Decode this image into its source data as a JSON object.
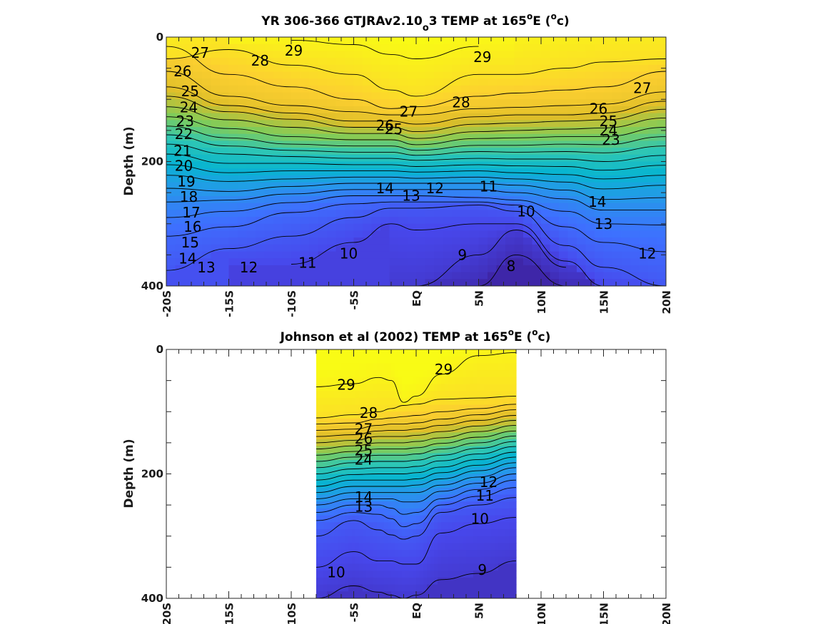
{
  "chart_data": [
    {
      "type": "heatmap",
      "title": {
        "pre": "YR 306-366 GTJRAv2.10",
        "sub": "o",
        "mid": "3 TEMP at 165",
        "sup1": "o",
        "post1": "E (",
        "sup2": "o",
        "post2": "c)"
      },
      "ylabel": "Depth (m)",
      "x_ticklabels": [
        "-20S",
        "-15S",
        "-10S",
        "-5S",
        "EQ",
        "5N",
        "10N",
        "15N",
        "20N"
      ],
      "x_ticks": [
        -20,
        -15,
        -10,
        -5,
        0,
        5,
        10,
        15,
        20
      ],
      "xlim": [
        -20,
        20
      ],
      "y_ticklabels": [
        "0",
        "200",
        "400"
      ],
      "y_ticks": [
        0,
        200,
        400
      ],
      "ylim": [
        0,
        400
      ],
      "colormap": "parula",
      "color_range": [
        7.5,
        29.5
      ],
      "data_lat_range": [
        -20,
        20
      ],
      "contour_levels": [
        8,
        9,
        10,
        11,
        12,
        13,
        14,
        15,
        16,
        17,
        18,
        19,
        20,
        21,
        22,
        23,
        24,
        25,
        26,
        27,
        28,
        29
      ],
      "isotherm_depths": {
        "lat": [
          -20,
          -15,
          -10,
          -5,
          -2,
          0,
          5,
          8,
          12,
          15,
          20
        ],
        "29": [
          null,
          null,
          5,
          12,
          28,
          35,
          15,
          null,
          null,
          null,
          null
        ],
        "28": [
          35,
          20,
          45,
          60,
          85,
          95,
          60,
          60,
          50,
          40,
          35
        ],
        "27": [
          15,
          60,
          80,
          100,
          115,
          112,
          95,
          90,
          85,
          80,
          55
        ],
        "26": [
          55,
          95,
          110,
          120,
          125,
          125,
          115,
          113,
          110,
          108,
          88
        ],
        "25": [
          80,
          110,
          122,
          135,
          135,
          140,
          128,
          125,
          125,
          122,
          103
        ],
        "24": [
          95,
          120,
          132,
          145,
          145,
          152,
          140,
          138,
          135,
          133,
          116
        ],
        "23": [
          112,
          133,
          145,
          155,
          155,
          163,
          152,
          150,
          148,
          146,
          130
        ],
        "22": [
          128,
          147,
          160,
          165,
          165,
          173,
          163,
          162,
          160,
          160,
          145
        ],
        "21": [
          143,
          162,
          172,
          175,
          175,
          182,
          174,
          174,
          172,
          173,
          160
        ],
        "20": [
          157,
          175,
          182,
          185,
          185,
          190,
          184,
          185,
          184,
          186,
          175
        ],
        "19": [
          172,
          188,
          192,
          195,
          195,
          198,
          195,
          196,
          196,
          200,
          190
        ],
        "18": [
          188,
          203,
          203,
          205,
          205,
          208,
          205,
          207,
          208,
          214,
          206
        ],
        "17": [
          205,
          218,
          215,
          215,
          215,
          217,
          215,
          218,
          221,
          228,
          222
        ],
        "16": [
          222,
          232,
          228,
          225,
          225,
          227,
          225,
          228,
          233,
          244,
          238
        ],
        "15": [
          243,
          248,
          240,
          235,
          235,
          235,
          235,
          238,
          246,
          261,
          258
        ],
        "14": [
          265,
          262,
          252,
          245,
          245,
          245,
          245,
          250,
          260,
          278,
          278
        ],
        "13": [
          290,
          280,
          266,
          255,
          255,
          255,
          258,
          262,
          280,
          300,
          302
        ],
        "12": [
          320,
          305,
          282,
          268,
          265,
          265,
          265,
          270,
          305,
          330,
          345
        ],
        "11": [
          375,
          340,
          320,
          290,
          275,
          275,
          270,
          280,
          335,
          370,
          400
        ],
        "10": [
          null,
          null,
          365,
          330,
          300,
          310,
          300,
          300,
          360,
          400,
          null
        ],
        "9": [
          null,
          null,
          null,
          null,
          null,
          400,
          350,
          310,
          370,
          null,
          null
        ],
        "8": [
          null,
          null,
          null,
          null,
          null,
          null,
          400,
          350,
          400,
          null,
          null
        ]
      },
      "contour_labels": [
        {
          "v": "26",
          "lat": -18.7,
          "d": 55
        },
        {
          "v": "27",
          "lat": -17.3,
          "d": 25
        },
        {
          "v": "28",
          "lat": -12.5,
          "d": 38
        },
        {
          "v": "29",
          "lat": -9.8,
          "d": 22
        },
        {
          "v": "29",
          "lat": 5.3,
          "d": 32
        },
        {
          "v": "28",
          "lat": 3.6,
          "d": 105
        },
        {
          "v": "27",
          "lat": 18.1,
          "d": 82
        },
        {
          "v": "26",
          "lat": 14.6,
          "d": 115
        },
        {
          "v": "25",
          "lat": -18.1,
          "d": 87
        },
        {
          "v": "24",
          "lat": -18.2,
          "d": 113
        },
        {
          "v": "23",
          "lat": -18.5,
          "d": 135
        },
        {
          "v": "22",
          "lat": -18.6,
          "d": 156
        },
        {
          "v": "21",
          "lat": -18.7,
          "d": 183
        },
        {
          "v": "20",
          "lat": -18.6,
          "d": 207
        },
        {
          "v": "19",
          "lat": -18.4,
          "d": 232
        },
        {
          "v": "18",
          "lat": -18.2,
          "d": 257
        },
        {
          "v": "17",
          "lat": -18.0,
          "d": 282
        },
        {
          "v": "16",
          "lat": -17.9,
          "d": 305
        },
        {
          "v": "15",
          "lat": -18.1,
          "d": 330
        },
        {
          "v": "14",
          "lat": -18.3,
          "d": 356
        },
        {
          "v": "13",
          "lat": -16.8,
          "d": 370
        },
        {
          "v": "12",
          "lat": -13.4,
          "d": 370
        },
        {
          "v": "11",
          "lat": -8.7,
          "d": 363
        },
        {
          "v": "10",
          "lat": -5.4,
          "d": 348
        },
        {
          "v": "9",
          "lat": 3.7,
          "d": 350
        },
        {
          "v": "8",
          "lat": 7.6,
          "d": 368
        },
        {
          "v": "27",
          "lat": -0.6,
          "d": 120
        },
        {
          "v": "26",
          "lat": -2.5,
          "d": 142
        },
        {
          "v": "25",
          "lat": -1.8,
          "d": 148
        },
        {
          "v": "14",
          "lat": -2.5,
          "d": 243
        },
        {
          "v": "13",
          "lat": -0.4,
          "d": 255
        },
        {
          "v": "12",
          "lat": 1.5,
          "d": 243
        },
        {
          "v": "11",
          "lat": 5.8,
          "d": 240
        },
        {
          "v": "10",
          "lat": 8.8,
          "d": 280
        },
        {
          "v": "25",
          "lat": 15.4,
          "d": 135
        },
        {
          "v": "24",
          "lat": 15.4,
          "d": 150
        },
        {
          "v": "23",
          "lat": 15.6,
          "d": 165
        },
        {
          "v": "13",
          "lat": 15.0,
          "d": 300
        },
        {
          "v": "14",
          "lat": 14.5,
          "d": 265
        },
        {
          "v": "12",
          "lat": 18.5,
          "d": 348
        }
      ]
    },
    {
      "type": "heatmap",
      "title": {
        "pre": "Johnson et al (2002) TEMP at 165",
        "sup1": "o",
        "post1": "E (",
        "sup2": "o",
        "post2": "c)"
      },
      "ylabel": "Depth (m)",
      "x_ticklabels": [
        "-20S",
        "-15S",
        "-10S",
        "-5S",
        "EQ",
        "5N",
        "10N",
        "15N",
        "20N"
      ],
      "x_ticks": [
        -20,
        -15,
        -10,
        -5,
        0,
        5,
        10,
        15,
        20
      ],
      "xlim": [
        -20,
        20
      ],
      "y_ticklabels": [
        "0",
        "200",
        "400"
      ],
      "y_ticks": [
        0,
        200,
        400
      ],
      "ylim": [
        0,
        400
      ],
      "colormap": "parula",
      "color_range": [
        7.5,
        29.5
      ],
      "data_lat_range": [
        -8,
        8
      ],
      "contour_levels": [
        9,
        10,
        11,
        12,
        13,
        14,
        15,
        16,
        17,
        18,
        19,
        20,
        21,
        22,
        23,
        24,
        25,
        26,
        27,
        28,
        29
      ],
      "isotherm_depths": {
        "lat": [
          -8,
          -5,
          -3,
          -2,
          -1,
          0,
          2,
          5,
          8
        ],
        "29": [
          60,
          55,
          45,
          50,
          85,
          75,
          40,
          10,
          5
        ],
        "28": [
          110,
          105,
          100,
          95,
          90,
          88,
          80,
          78,
          75
        ],
        "27": [
          120,
          118,
          112,
          110,
          108,
          106,
          100,
          95,
          88
        ],
        "26": [
          130,
          128,
          122,
          120,
          120,
          118,
          112,
          105,
          97
        ],
        "25": [
          140,
          137,
          131,
          130,
          130,
          128,
          122,
          114,
          106
        ],
        "24": [
          150,
          146,
          140,
          140,
          140,
          138,
          132,
          123,
          114
        ],
        "23": [
          160,
          155,
          150,
          150,
          150,
          148,
          142,
          132,
          122
        ],
        "22": [
          170,
          164,
          160,
          160,
          160,
          158,
          151,
          141,
          131
        ],
        "21": [
          180,
          173,
          170,
          170,
          170,
          168,
          160,
          150,
          139
        ],
        "20": [
          190,
          182,
          180,
          180,
          180,
          178,
          170,
          159,
          148
        ],
        "19": [
          200,
          192,
          190,
          190,
          190,
          188,
          179,
          168,
          156
        ],
        "18": [
          210,
          201,
          200,
          200,
          200,
          198,
          189,
          177,
          165
        ],
        "17": [
          220,
          210,
          210,
          210,
          210,
          208,
          198,
          186,
          173
        ],
        "16": [
          230,
          220,
          220,
          220,
          220,
          218,
          208,
          195,
          182
        ],
        "15": [
          240,
          230,
          230,
          230,
          230,
          230,
          218,
          205,
          190
        ],
        "14": [
          250,
          240,
          240,
          240,
          245,
          245,
          228,
          215,
          200
        ],
        "13": [
          262,
          250,
          250,
          255,
          265,
          262,
          240,
          225,
          210
        ],
        "12": [
          275,
          262,
          265,
          272,
          285,
          280,
          250,
          236,
          222
        ],
        "11": [
          300,
          275,
          290,
          298,
          305,
          300,
          262,
          250,
          238
        ],
        "10": [
          350,
          325,
          340,
          340,
          345,
          345,
          295,
          280,
          270
        ],
        "9": [
          400,
          380,
          390,
          395,
          400,
          395,
          370,
          360,
          340
        ]
      },
      "contour_labels": [
        {
          "v": "29",
          "lat": -5.6,
          "d": 57
        },
        {
          "v": "29",
          "lat": 2.2,
          "d": 32
        },
        {
          "v": "28",
          "lat": -3.8,
          "d": 102
        },
        {
          "v": "27",
          "lat": -4.2,
          "d": 128
        },
        {
          "v": "26",
          "lat": -4.2,
          "d": 143
        },
        {
          "v": "25",
          "lat": -4.2,
          "d": 162
        },
        {
          "v": "24",
          "lat": -4.2,
          "d": 177
        },
        {
          "v": "13",
          "lat": -4.2,
          "d": 253
        },
        {
          "v": "14",
          "lat": -4.2,
          "d": 237
        },
        {
          "v": "12",
          "lat": 5.8,
          "d": 213
        },
        {
          "v": "11",
          "lat": 5.5,
          "d": 235
        },
        {
          "v": "10",
          "lat": 5.1,
          "d": 272
        },
        {
          "v": "10",
          "lat": -6.4,
          "d": 358
        },
        {
          "v": "9",
          "lat": 5.3,
          "d": 354
        }
      ]
    }
  ]
}
